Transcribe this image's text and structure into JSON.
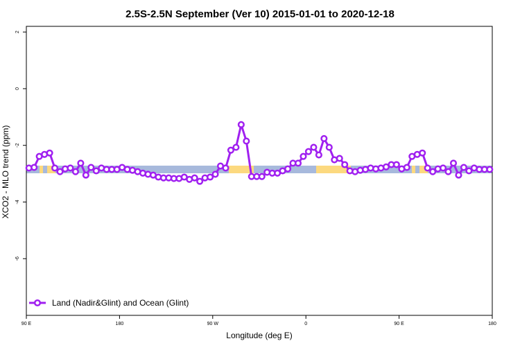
{
  "chart_data": {
    "type": "line",
    "title": "2.5S-2.5N September (Ver 10)   2015-01-01 to 2020-12-18",
    "xlabel": "Longitude (deg E)",
    "ylabel": "XCO2 - MLO trend (ppm)",
    "x": [
      92.5,
      97.5,
      102.5,
      107.5,
      112.5,
      117.5,
      122.5,
      127.5,
      132.5,
      137.5,
      142.5,
      147.5,
      152.5,
      157.5,
      162.5,
      167.5,
      172.5,
      177.5,
      182.5,
      187.5,
      192.5,
      197.5,
      202.5,
      207.5,
      212.5,
      217.5,
      222.5,
      227.5,
      232.5,
      237.5,
      242.5,
      247.5,
      252.5,
      257.5,
      262.5,
      267.5,
      272.5,
      277.5,
      282.5,
      287.5,
      292.5,
      297.5,
      302.5,
      307.5,
      312.5,
      317.5,
      322.5,
      327.5,
      332.5,
      337.5,
      342.5,
      347.5,
      352.5,
      357.5,
      362.5,
      367.5,
      372.5,
      377.5,
      382.5,
      387.5,
      392.5,
      397.5,
      402.5,
      407.5,
      412.5,
      417.5,
      422.5,
      427.5,
      432.5,
      437.5,
      442.5,
      447.5,
      452.5,
      457.5,
      462.5,
      467.5,
      472.5,
      477.5,
      482.5,
      487.5,
      492.5,
      497.5,
      502.5,
      507.5,
      512.5,
      517.5,
      522.5,
      527.5,
      532.5,
      537.5
    ],
    "series": [
      {
        "name": "Land (Nadir&Glint) and Ocean (Glint)",
        "color": "#a020f0",
        "values": [
          -2.8,
          -2.78,
          -2.39,
          -2.32,
          -2.27,
          -2.8,
          -2.93,
          -2.83,
          -2.8,
          -2.93,
          -2.63,
          -3.05,
          -2.78,
          -2.9,
          -2.8,
          -2.85,
          -2.85,
          -2.85,
          -2.78,
          -2.85,
          -2.88,
          -2.93,
          -2.98,
          -3.02,
          -3.05,
          -3.12,
          -3.15,
          -3.15,
          -3.17,
          -3.17,
          -3.12,
          -3.2,
          -3.15,
          -3.27,
          -3.15,
          -3.12,
          -3.02,
          -2.73,
          -2.8,
          -2.17,
          -2.07,
          -1.27,
          -1.85,
          -3.1,
          -3.1,
          -3.1,
          -2.95,
          -2.98,
          -2.98,
          -2.9,
          -2.83,
          -2.63,
          -2.63,
          -2.39,
          -2.22,
          -2.07,
          -2.34,
          -1.76,
          -2.07,
          -2.51,
          -2.46,
          -2.68,
          -2.9,
          -2.93,
          -2.88,
          -2.85,
          -2.8,
          -2.83,
          -2.8,
          -2.76,
          -2.68,
          -2.68,
          -2.83,
          -2.78,
          -2.39,
          -2.32,
          -2.27,
          -2.8,
          -2.93,
          -2.83,
          -2.8,
          -2.93,
          -2.63,
          -3.05,
          -2.78,
          -2.9,
          -2.8,
          -2.85,
          -2.85,
          -2.85
        ]
      }
    ],
    "xlim": [
      90,
      540
    ],
    "xticks": [
      {
        "value": 90,
        "label": "90 E"
      },
      180,
      {
        "value": 270,
        "label": "90 W"
      },
      {
        "value": 360,
        "label": "0"
      },
      {
        "value": 450,
        "label": "90 E"
      },
      {
        "value": 540,
        "label": "180"
      }
    ],
    "ylim": [
      -8,
      2.2
    ],
    "yticks": [
      2,
      0,
      -2,
      -4,
      -6
    ],
    "legend": "lower left"
  }
}
